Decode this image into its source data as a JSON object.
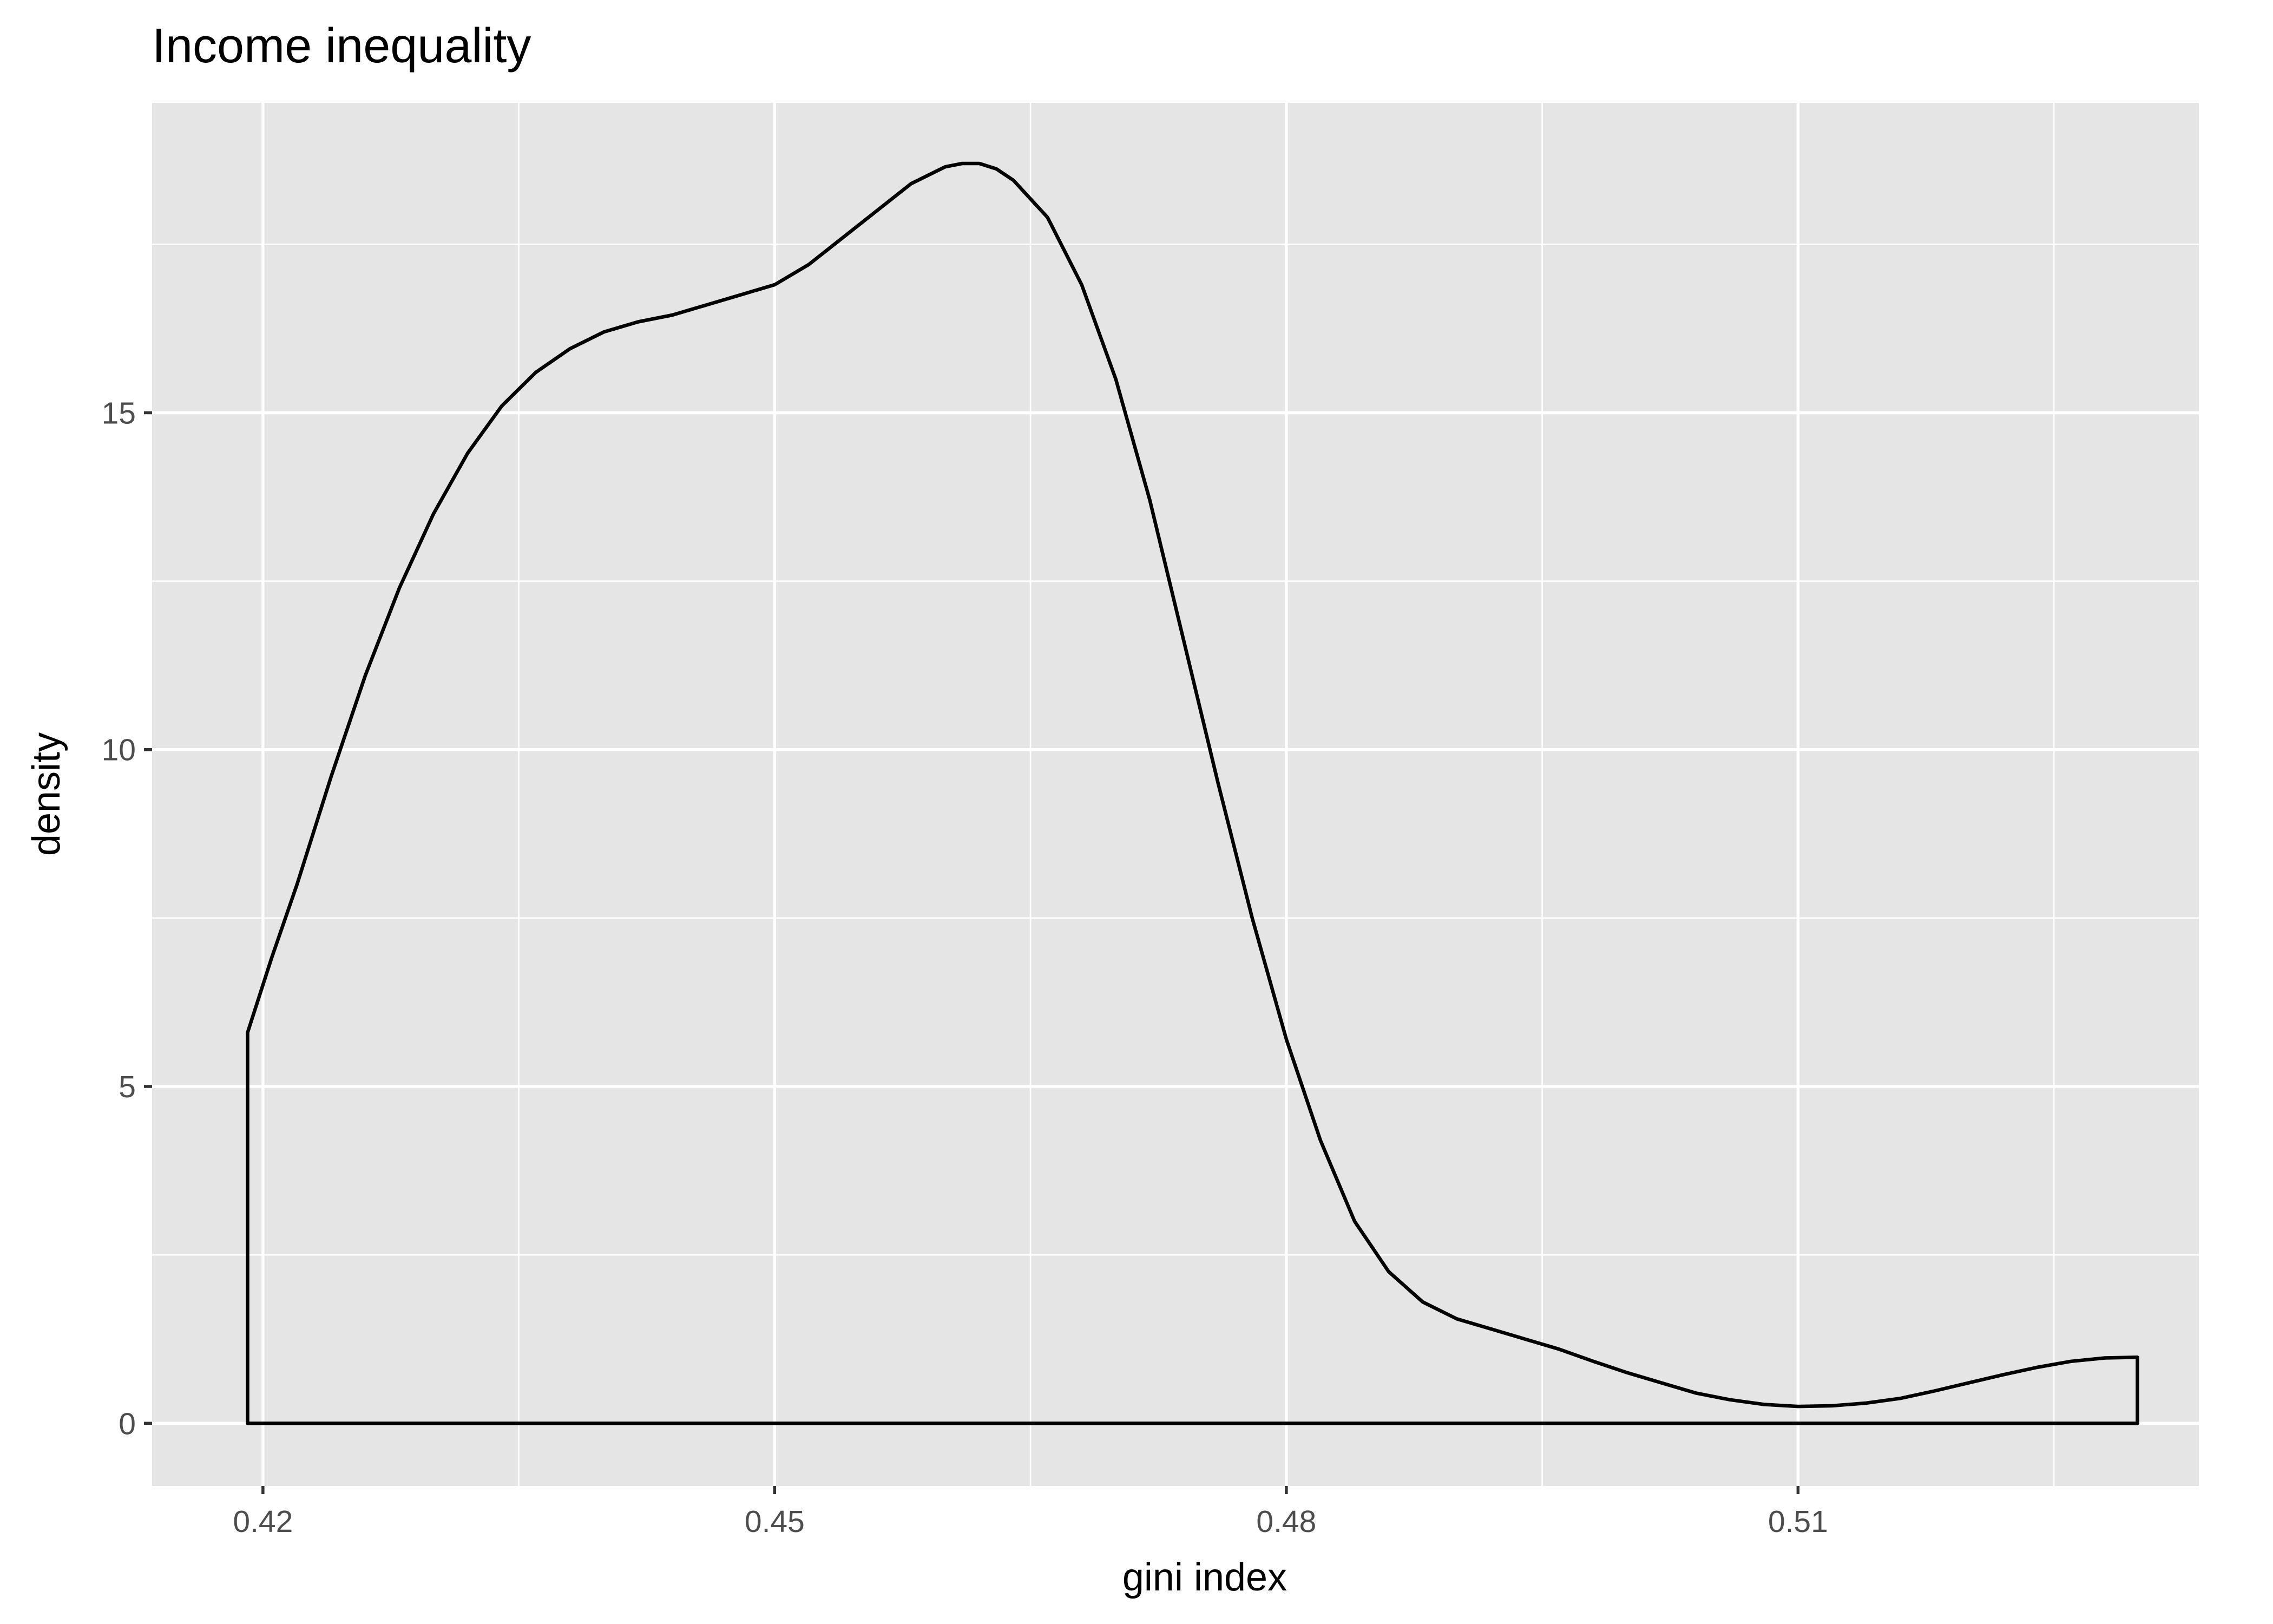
{
  "chart_data": {
    "type": "area",
    "title": "Income inequality",
    "xlabel": "gini index",
    "ylabel": "density",
    "xlim": [
      0.4135,
      0.5335
    ],
    "ylim": [
      -0.93,
      19.6
    ],
    "x_ticks": [
      0.42,
      0.45,
      0.48,
      0.51
    ],
    "x_tick_labels": [
      "0.42",
      "0.45",
      "0.48",
      "0.51"
    ],
    "x_minor_ticks": [
      0.435,
      0.465,
      0.495,
      0.525
    ],
    "y_ticks": [
      0,
      5,
      10,
      15
    ],
    "y_tick_labels": [
      "0",
      "5",
      "10",
      "15"
    ],
    "y_minor_ticks": [
      2.5,
      7.5,
      12.5,
      17.5
    ],
    "grid": true,
    "series": [
      {
        "x": [
          0.4191,
          0.4205,
          0.422,
          0.424,
          0.426,
          0.428,
          0.43,
          0.432,
          0.434,
          0.436,
          0.438,
          0.44,
          0.442,
          0.444,
          0.446,
          0.448,
          0.45,
          0.452,
          0.454,
          0.456,
          0.458,
          0.46,
          0.461,
          0.462,
          0.463,
          0.464,
          0.466,
          0.468,
          0.47,
          0.472,
          0.474,
          0.476,
          0.478,
          0.48,
          0.482,
          0.484,
          0.486,
          0.488,
          0.49,
          0.492,
          0.494,
          0.496,
          0.498,
          0.5,
          0.502,
          0.504,
          0.506,
          0.508,
          0.51,
          0.512,
          0.514,
          0.516,
          0.518,
          0.52,
          0.522,
          0.524,
          0.526,
          0.528,
          0.5299
        ],
        "y": [
          5.8,
          6.9,
          8.0,
          9.6,
          11.1,
          12.4,
          13.5,
          14.4,
          15.1,
          15.6,
          15.95,
          16.2,
          16.35,
          16.45,
          16.6,
          16.75,
          16.9,
          17.2,
          17.6,
          18.0,
          18.4,
          18.65,
          18.7,
          18.7,
          18.62,
          18.45,
          17.9,
          16.9,
          15.5,
          13.7,
          11.6,
          9.5,
          7.5,
          5.7,
          4.2,
          3.0,
          2.25,
          1.8,
          1.55,
          1.4,
          1.25,
          1.1,
          0.92,
          0.75,
          0.6,
          0.45,
          0.35,
          0.28,
          0.25,
          0.26,
          0.3,
          0.37,
          0.48,
          0.6,
          0.72,
          0.83,
          0.92,
          0.97,
          0.98
        ]
      }
    ]
  }
}
